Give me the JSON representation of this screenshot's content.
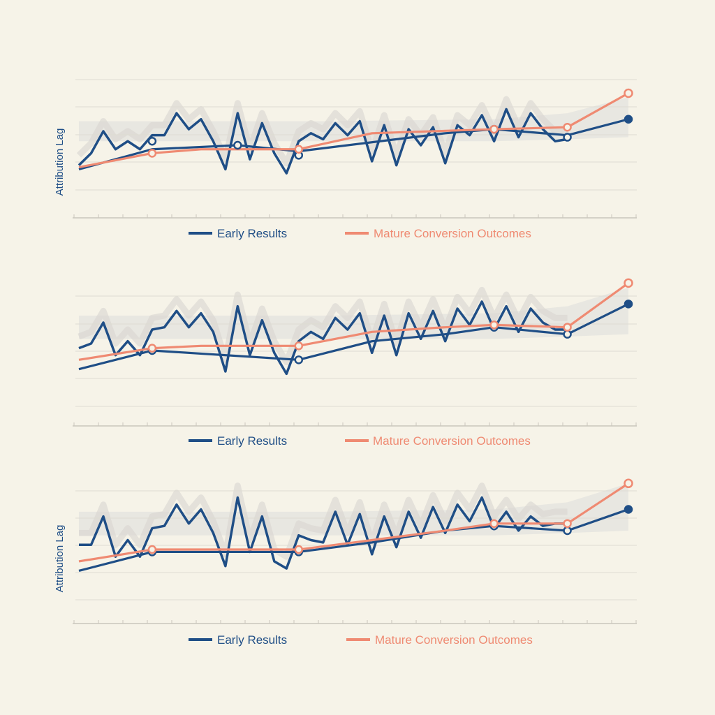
{
  "colors": {
    "background": "#f6f3e8",
    "early": "#1f4e86",
    "mature": "#ef8a72",
    "band": "#dcdcda",
    "grid": "#dedbd2",
    "axis": "#c9c6bc"
  },
  "chart_data": [
    {
      "type": "line",
      "ylabel": "Attribution Lag",
      "grid": true,
      "legend": "bottom-center",
      "series": [
        {
          "name": "Early Results",
          "color": "#1f4e86",
          "x": [
            0,
            1,
            2,
            3,
            4,
            5,
            6,
            7,
            8,
            9,
            10,
            11,
            12,
            13,
            14,
            15,
            16,
            17,
            18,
            19,
            20,
            21,
            22,
            23,
            24,
            25,
            26,
            27,
            28,
            29,
            30,
            31,
            32,
            33,
            34,
            35,
            36,
            37,
            38,
            39,
            40
          ],
          "values": [
            2.0,
            2.6,
            3.7,
            2.8,
            3.2,
            2.8,
            3.5,
            3.5,
            4.6,
            3.8,
            4.3,
            3.2,
            1.8,
            4.6,
            2.3,
            4.1,
            2.6,
            1.6,
            3.2,
            3.6,
            3.3,
            4.1,
            3.5,
            4.2,
            2.2,
            4.0,
            2.0,
            3.8,
            3.0,
            3.9,
            2.1,
            4.0,
            3.5,
            4.5,
            3.2,
            4.8,
            3.4,
            4.6,
            3.8,
            3.2,
            3.3
          ],
          "markers": [
            [
              6,
              3.2
            ],
            [
              13,
              3.0
            ],
            [
              18,
              2.5
            ],
            [
              34,
              3.8
            ],
            [
              40,
              3.4
            ]
          ],
          "end_marker": [
            45,
            4.3
          ],
          "trend": [
            [
              0,
              1.8
            ],
            [
              6,
              2.8
            ],
            [
              13,
              3.0
            ],
            [
              18,
              2.7
            ],
            [
              30,
              3.6
            ],
            [
              34,
              3.8
            ],
            [
              40,
              3.5
            ],
            [
              45,
              4.3
            ]
          ]
        },
        {
          "name": "Mature Conversion Outcomes",
          "color": "#ef8a72",
          "x": [
            0,
            6,
            10,
            18,
            24,
            34,
            40,
            45
          ],
          "values": [
            1.9,
            2.6,
            2.8,
            2.8,
            3.6,
            3.8,
            3.9,
            5.6
          ],
          "markers": [
            [
              6,
              2.6
            ],
            [
              18,
              2.8
            ],
            [
              34,
              3.8
            ],
            [
              40,
              3.9
            ]
          ],
          "end_marker": [
            45,
            5.6
          ]
        }
      ],
      "band": {
        "from_x": 0,
        "to_x": 45,
        "upper": [
          4.2,
          4.2,
          4.3,
          4.6,
          5.4
        ],
        "lower": [
          3.2,
          3.2,
          3.2,
          3.3,
          3.4
        ]
      }
    },
    {
      "type": "line",
      "ylabel": "",
      "grid": true,
      "legend": "bottom-center",
      "series": [
        {
          "name": "Early Results",
          "color": "#1f4e86",
          "x": [
            0,
            1,
            2,
            3,
            4,
            5,
            6,
            7,
            8,
            9,
            10,
            11,
            12,
            13,
            14,
            15,
            16,
            17,
            18,
            19,
            20,
            21,
            22,
            23,
            24,
            25,
            26,
            27,
            28,
            29,
            30,
            31,
            32,
            33,
            34,
            35,
            36,
            37,
            38,
            39,
            40
          ],
          "values": [
            2.8,
            3.0,
            3.9,
            2.5,
            3.1,
            2.5,
            3.6,
            3.7,
            4.4,
            3.7,
            4.3,
            3.5,
            1.8,
            4.6,
            2.5,
            4.0,
            2.6,
            1.7,
            3.1,
            3.5,
            3.2,
            4.1,
            3.6,
            4.3,
            2.6,
            4.2,
            2.5,
            4.3,
            3.2,
            4.4,
            3.1,
            4.5,
            3.8,
            4.8,
            3.6,
            4.6,
            3.5,
            4.5,
            3.9,
            3.6,
            3.6
          ],
          "markers": [
            [
              6,
              2.7
            ],
            [
              18,
              2.3
            ],
            [
              34,
              3.7
            ],
            [
              40,
              3.4
            ]
          ],
          "end_marker": [
            45,
            4.7
          ],
          "trend": [
            [
              0,
              1.9
            ],
            [
              6,
              2.7
            ],
            [
              18,
              2.3
            ],
            [
              24,
              3.1
            ],
            [
              30,
              3.4
            ],
            [
              34,
              3.7
            ],
            [
              40,
              3.4
            ],
            [
              45,
              4.7
            ]
          ]
        },
        {
          "name": "Mature Conversion Outcomes",
          "color": "#ef8a72",
          "x": [
            0,
            6,
            10,
            18,
            24,
            30,
            34,
            40,
            45
          ],
          "values": [
            2.3,
            2.8,
            2.9,
            2.9,
            3.5,
            3.7,
            3.8,
            3.7,
            5.6
          ],
          "markers": [
            [
              6,
              2.8
            ],
            [
              18,
              2.9
            ],
            [
              34,
              3.8
            ],
            [
              40,
              3.7
            ]
          ],
          "end_marker": [
            45,
            5.6
          ]
        }
      ]
    },
    {
      "type": "line",
      "ylabel": "Attribution Lag",
      "grid": true,
      "legend": "bottom-center",
      "series": [
        {
          "name": "Early Results",
          "color": "#1f4e86",
          "x": [
            0,
            1,
            2,
            3,
            4,
            5,
            6,
            7,
            8,
            9,
            10,
            11,
            12,
            13,
            14,
            15,
            16,
            17,
            18,
            19,
            20,
            21,
            22,
            23,
            24,
            25,
            26,
            27,
            28,
            29,
            30,
            31,
            32,
            33,
            34,
            35,
            36,
            37,
            38,
            39,
            40
          ],
          "values": [
            2.8,
            2.8,
            4.0,
            2.3,
            3.0,
            2.3,
            3.5,
            3.6,
            4.5,
            3.7,
            4.3,
            3.3,
            1.9,
            4.8,
            2.5,
            4.0,
            2.1,
            1.8,
            3.2,
            3.0,
            2.9,
            4.2,
            2.8,
            4.1,
            2.4,
            4.0,
            2.7,
            4.2,
            3.1,
            4.4,
            3.3,
            4.5,
            3.8,
            4.8,
            3.5,
            4.2,
            3.4,
            4.0,
            3.6,
            3.7,
            3.7
          ],
          "markers": [
            [
              6,
              2.5
            ],
            [
              18,
              2.5
            ],
            [
              34,
              3.6
            ],
            [
              40,
              3.4
            ]
          ],
          "end_marker": [
            45,
            4.3
          ],
          "trend": [
            [
              0,
              1.7
            ],
            [
              6,
              2.5
            ],
            [
              18,
              2.5
            ],
            [
              24,
              2.9
            ],
            [
              30,
              3.4
            ],
            [
              34,
              3.6
            ],
            [
              40,
              3.4
            ],
            [
              45,
              4.3
            ]
          ]
        },
        {
          "name": "Mature Conversion Outcomes",
          "color": "#ef8a72",
          "x": [
            0,
            6,
            10,
            18,
            24,
            30,
            34,
            40,
            45
          ],
          "values": [
            2.1,
            2.6,
            2.6,
            2.6,
            3.0,
            3.4,
            3.7,
            3.7,
            5.4
          ],
          "markers": [
            [
              6,
              2.6
            ],
            [
              18,
              2.6
            ],
            [
              34,
              3.7
            ],
            [
              40,
              3.7
            ]
          ],
          "end_marker": [
            45,
            5.4
          ]
        }
      ]
    }
  ],
  "legend": [
    {
      "early_label": "Early Results",
      "mature_label": "Mature Conversion Outcomes"
    },
    {
      "early_label": "Early Results",
      "mature_label": "Mature Conversion Outcomes"
    },
    {
      "early_label": "Early Results",
      "mature_label": "Mature Conversion Outcomes"
    }
  ]
}
